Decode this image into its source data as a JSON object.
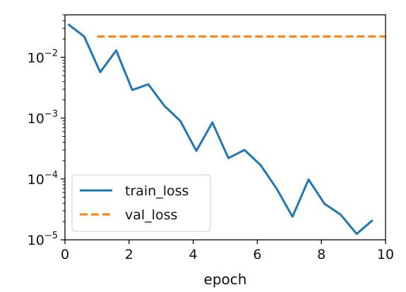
{
  "chart_data": {
    "type": "line",
    "title": "",
    "xlabel": "epoch",
    "ylabel": "",
    "xlim": [
      0,
      10
    ],
    "ylim": [
      1e-05,
      0.05
    ],
    "yscale": "log",
    "grid": false,
    "legend_position": "lower-left",
    "x_ticks": [
      {
        "value": 0,
        "label": "0"
      },
      {
        "value": 2,
        "label": "2"
      },
      {
        "value": 4,
        "label": "4"
      },
      {
        "value": 6,
        "label": "6"
      },
      {
        "value": 8,
        "label": "8"
      },
      {
        "value": 10,
        "label": "10"
      }
    ],
    "y_ticks": [
      {
        "value": 1e-05,
        "base": "10",
        "exp": "−5"
      },
      {
        "value": 0.0001,
        "base": "10",
        "exp": "−4"
      },
      {
        "value": 0.001,
        "base": "10",
        "exp": "−3"
      },
      {
        "value": 0.01,
        "base": "10",
        "exp": "−2"
      }
    ],
    "series": [
      {
        "name": "train_loss",
        "color": "#1f77b4",
        "style": "solid",
        "x": [
          0.1,
          0.6,
          1.1,
          1.6,
          2.1,
          2.6,
          3.1,
          3.6,
          4.1,
          4.6,
          5.1,
          5.6,
          6.1,
          6.6,
          7.1,
          7.6,
          8.1,
          8.6,
          9.1,
          9.6
        ],
        "y": [
          0.035,
          0.022,
          0.0057,
          0.013,
          0.0029,
          0.0036,
          0.0016,
          0.0009,
          0.00029,
          0.00085,
          0.00022,
          0.0003,
          0.00017,
          7e-05,
          2.4e-05,
          9.8e-05,
          3.9e-05,
          2.6e-05,
          1.25e-05,
          2.1e-05
        ]
      },
      {
        "name": "val_loss",
        "color": "#ff7f0e",
        "style": "dashed",
        "x": [
          1,
          2,
          3,
          4,
          5,
          6,
          7,
          8,
          9,
          10
        ],
        "y": [
          0.022,
          0.022,
          0.022,
          0.022,
          0.022,
          0.022,
          0.022,
          0.022,
          0.022,
          0.022
        ]
      }
    ]
  }
}
